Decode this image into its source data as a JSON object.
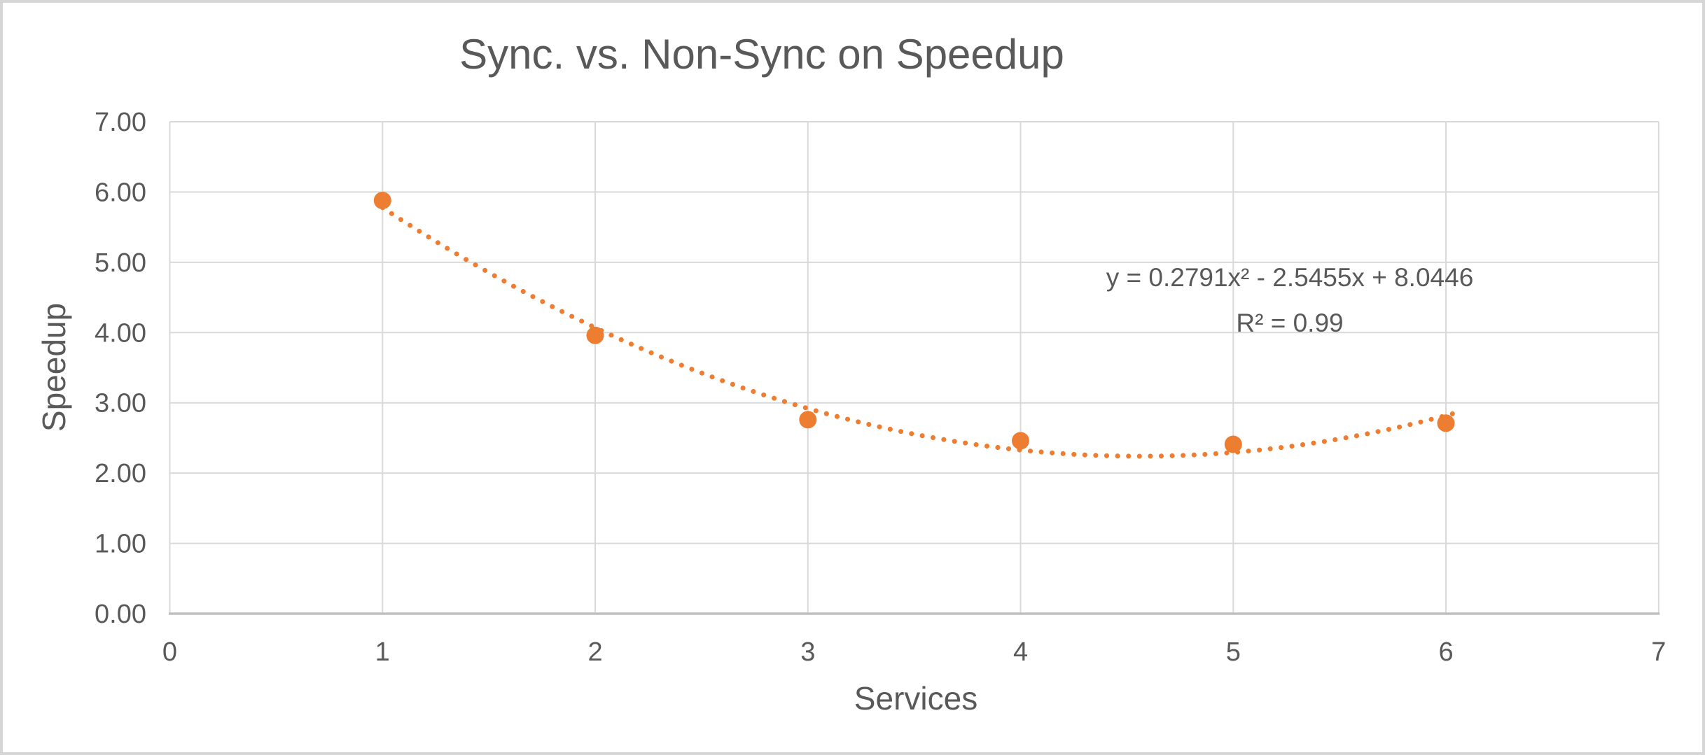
{
  "chart_data": {
    "type": "scatter",
    "title": "Sync. vs. Non-Sync on Speedup",
    "xlabel": "Services",
    "ylabel": "Speedup",
    "x": [
      1,
      2,
      3,
      4,
      5,
      6
    ],
    "y": [
      5.88,
      3.96,
      2.76,
      2.46,
      2.41,
      2.71
    ],
    "xlim": [
      0,
      7
    ],
    "ylim": [
      0,
      7
    ],
    "x_ticks": [
      "0",
      "1",
      "2",
      "3",
      "4",
      "5",
      "6",
      "7"
    ],
    "y_ticks": [
      "0.00",
      "1.00",
      "2.00",
      "3.00",
      "4.00",
      "5.00",
      "6.00",
      "7.00"
    ],
    "grid": true,
    "legend": "none",
    "trendline": {
      "type": "polynomial",
      "order": 2,
      "a": 0.2791,
      "b": -2.5455,
      "c": 8.0446,
      "equation_label": "y = 0.2791x² - 2.5455x + 8.0446",
      "r_squared_label": "R² = 0.99",
      "style": "dotted"
    },
    "colors": {
      "series": "#ED7D31",
      "text": "#595959",
      "gridline": "#D9D9D9",
      "axis_line": "#BFBFBF",
      "background": "#FFFFFF",
      "frame": "#D6D6D6"
    }
  }
}
